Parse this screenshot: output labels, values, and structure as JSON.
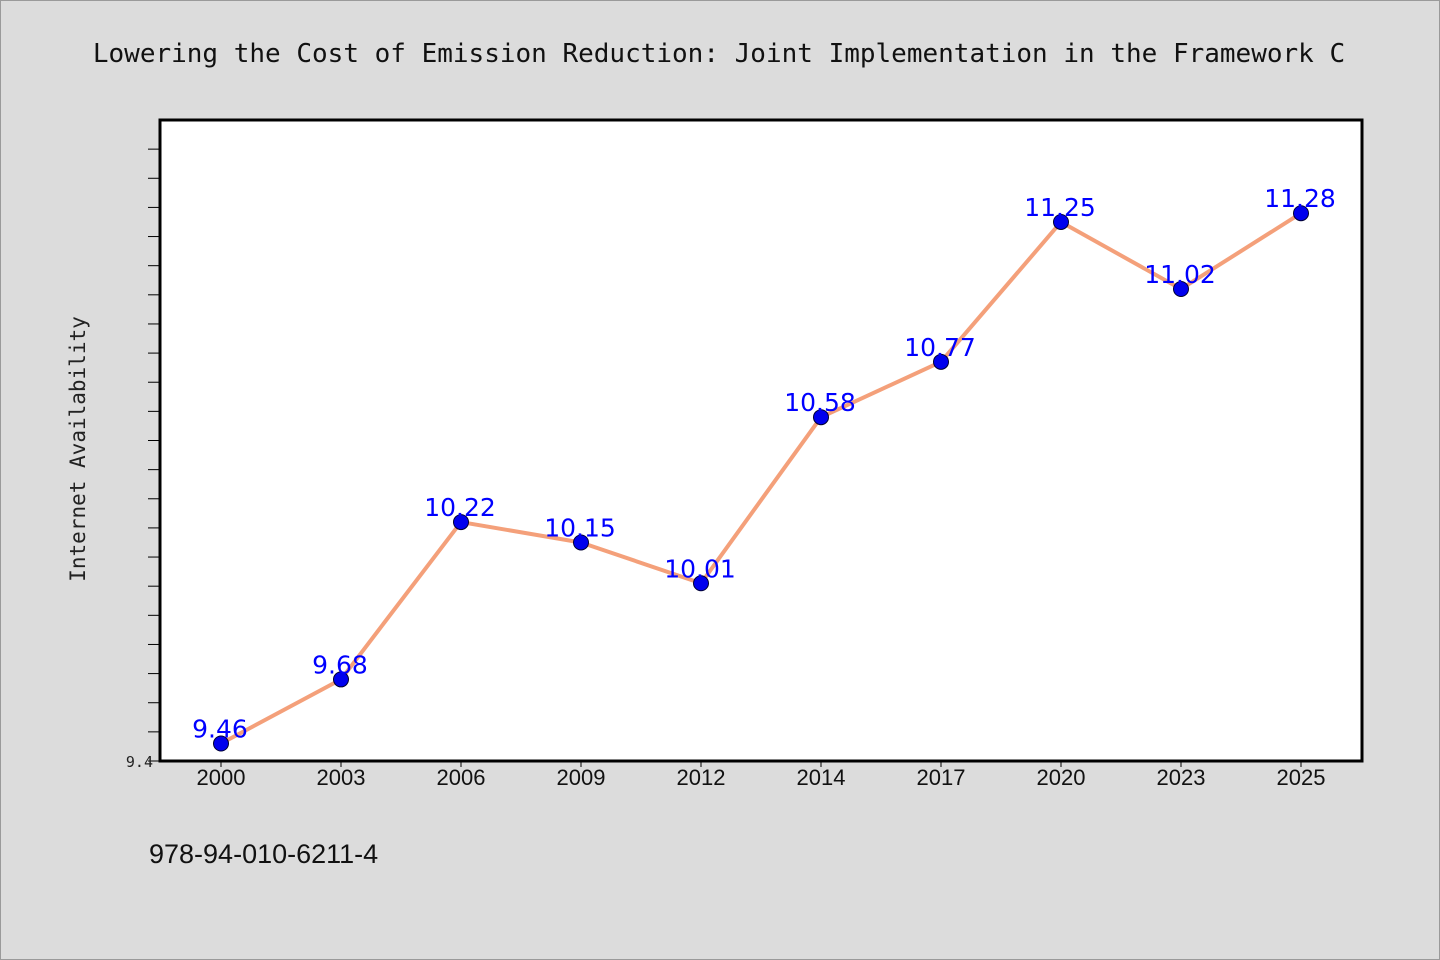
{
  "chart_data": {
    "type": "line",
    "title": "Lowering the Cost of Emission Reduction: Joint Implementation in the Framework C",
    "xlabel": "",
    "ylabel": "Internet Availability",
    "categories": [
      "2000",
      "2003",
      "2006",
      "2009",
      "2012",
      "2014",
      "2017",
      "2020",
      "2023",
      "2025"
    ],
    "series": [
      {
        "values": [
          9.46,
          9.68,
          10.22,
          10.15,
          10.01,
          10.58,
          10.77,
          11.25,
          11.02,
          11.28
        ],
        "labels": [
          "9.46",
          "9.68",
          "10.22",
          "10.15",
          "10.01",
          "10.58",
          "10.77",
          "11.25",
          "11.02",
          "11.28"
        ]
      }
    ],
    "ylim": [
      9.4,
      11.6
    ],
    "yticks_labeled": [
      "9.4"
    ],
    "grid": false,
    "legend": "none",
    "colors": {
      "line": "#f4a07a",
      "marker": "#0000ee",
      "label": "#0000ff",
      "plot_background": "#ffffff",
      "figure_background": "#dcdcdc"
    }
  },
  "footer": {
    "isbn": "978-94-010-6211-4"
  }
}
